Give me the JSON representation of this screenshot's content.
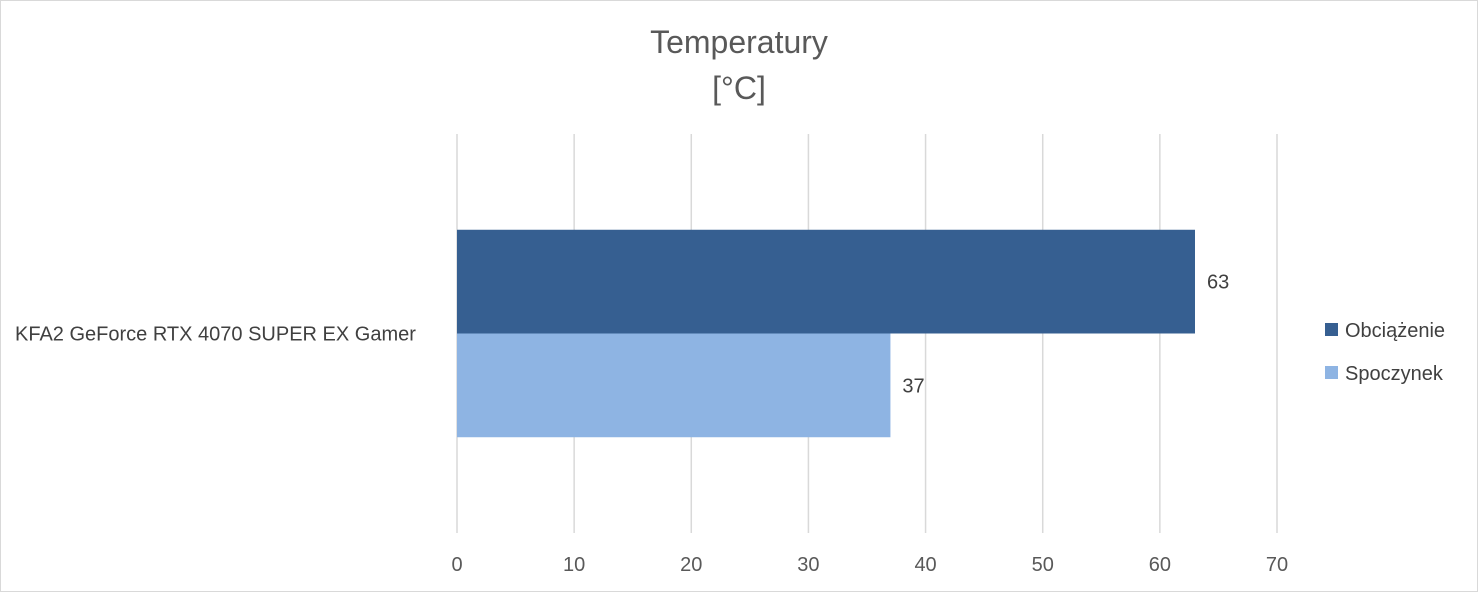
{
  "chart_data": {
    "type": "bar",
    "orientation": "horizontal",
    "title": "Temperatury",
    "subtitle": "[°C]",
    "categories": [
      "KFA2 GeForce RTX 4070 SUPER EX Gamer"
    ],
    "series": [
      {
        "name": "Obciążenie",
        "values": [
          63
        ],
        "color": "#365F91"
      },
      {
        "name": "Spoczynek",
        "values": [
          37
        ],
        "color": "#8EB4E3"
      }
    ],
    "xlim": [
      0,
      70
    ],
    "xticks": [
      "0",
      "10",
      "20",
      "30",
      "40",
      "50",
      "60",
      "70"
    ],
    "grid": true,
    "legend": "right"
  }
}
